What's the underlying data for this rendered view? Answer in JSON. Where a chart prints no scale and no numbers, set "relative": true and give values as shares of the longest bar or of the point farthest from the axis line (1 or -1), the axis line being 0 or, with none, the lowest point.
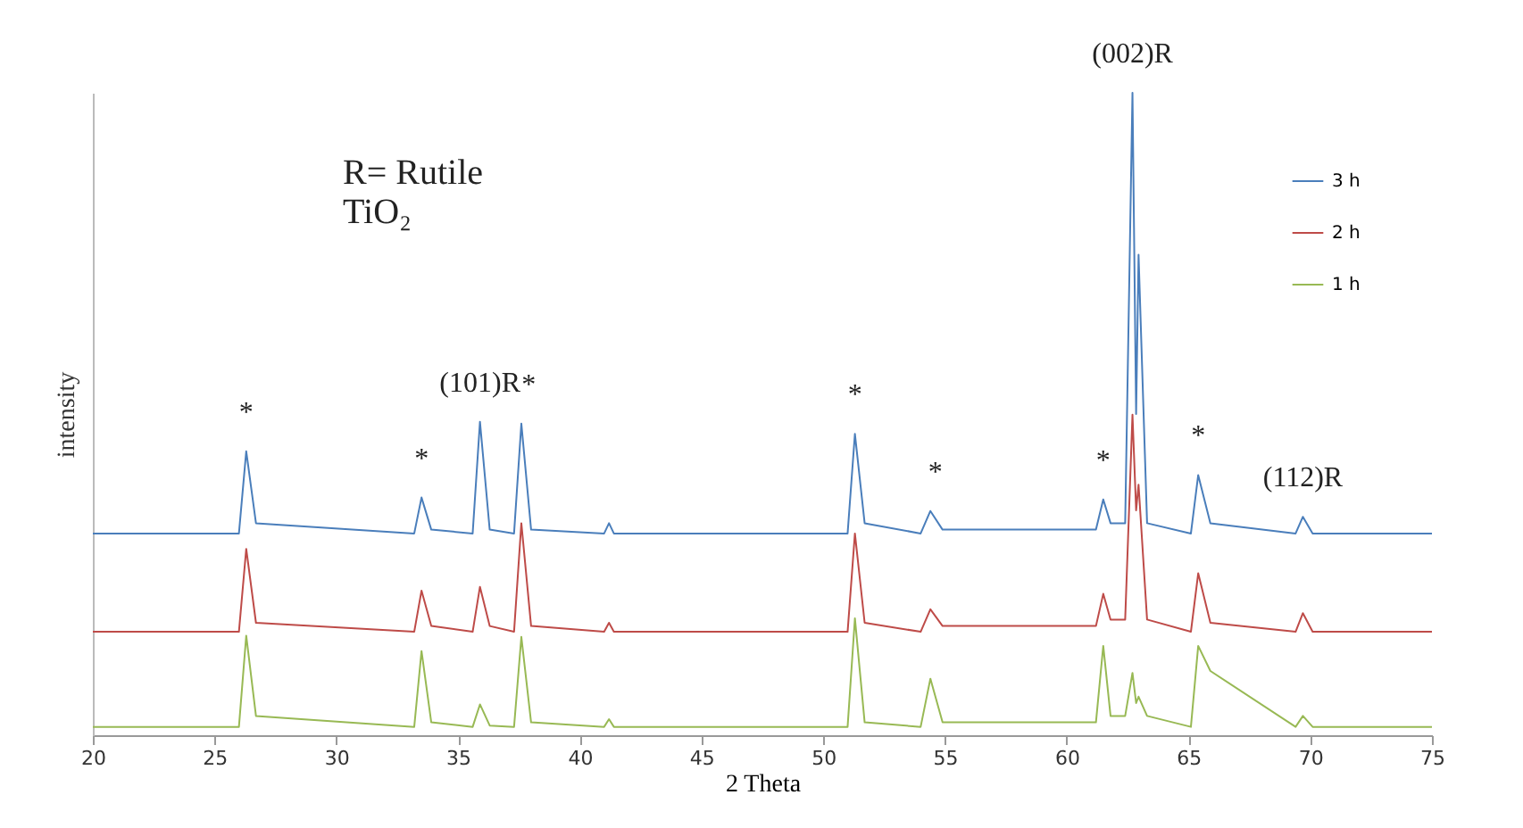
{
  "chart_data": {
    "type": "line",
    "relative": true,
    "xlabel": "2 Theta",
    "ylabel": "intensity",
    "xlim": [
      20,
      75
    ],
    "xticks": [
      20,
      25,
      30,
      35,
      40,
      45,
      50,
      55,
      60,
      65,
      70,
      75
    ],
    "legend": "top right",
    "grid": false,
    "annotations": [
      "R= Rutile",
      "TiO₂",
      {
        "text": "*",
        "x": 26.3,
        "y": 0.442
      },
      {
        "text": "*",
        "x": 33.5,
        "y": 0.37
      },
      {
        "text": "(101)R",
        "x": 35.9,
        "y": 0.488
      },
      {
        "text": "*",
        "x": 37.9,
        "y": 0.485
      },
      {
        "text": "*",
        "x": 51.3,
        "y": 0.469
      },
      {
        "text": "*",
        "x": 54.6,
        "y": 0.349
      },
      {
        "text": "*",
        "x": 61.5,
        "y": 0.367
      },
      {
        "text": "(002)R",
        "x": 62.7,
        "y": 1
      },
      {
        "text": "*",
        "x": 65.4,
        "y": 0.405
      },
      {
        "text": "(112)R",
        "x": 69.7,
        "y": 0.34
      }
    ],
    "series": [
      {
        "name": "3 h",
        "color": "#4a7ebb",
        "x": [
          20,
          26.0,
          26.3,
          26.7,
          33.2,
          33.5,
          33.9,
          35.6,
          35.9,
          36.3,
          37.3,
          37.6,
          38.0,
          41.0,
          41.2,
          41.4,
          51.0,
          51.3,
          51.7,
          54.0,
          54.4,
          54.9,
          61.2,
          61.5,
          61.8,
          62.4,
          62.7,
          62.85,
          62.95,
          63.3,
          65.1,
          65.4,
          65.9,
          69.4,
          69.7,
          70.1,
          75
        ],
        "values": [
          0.314,
          0.314,
          0.442,
          0.33,
          0.314,
          0.37,
          0.32,
          0.314,
          0.488,
          0.32,
          0.314,
          0.485,
          0.32,
          0.314,
          0.33,
          0.314,
          0.314,
          0.469,
          0.33,
          0.314,
          0.349,
          0.32,
          0.32,
          0.367,
          0.33,
          0.33,
          1,
          0.5,
          0.748,
          0.33,
          0.314,
          0.405,
          0.33,
          0.314,
          0.34,
          0.314,
          0.314
        ]
      },
      {
        "name": "2 h",
        "color": "#be4b48",
        "x": [
          20,
          26.0,
          26.3,
          26.7,
          33.2,
          33.5,
          33.9,
          35.6,
          35.9,
          36.3,
          37.3,
          37.6,
          38.0,
          41.0,
          41.2,
          41.4,
          51.0,
          51.3,
          51.7,
          54.0,
          54.4,
          54.9,
          61.2,
          61.5,
          61.8,
          62.4,
          62.7,
          62.85,
          62.95,
          63.3,
          65.1,
          65.4,
          65.9,
          69.4,
          69.7,
          70.1,
          75
        ],
        "values": [
          0.161,
          0.161,
          0.29,
          0.175,
          0.161,
          0.225,
          0.17,
          0.161,
          0.231,
          0.17,
          0.161,
          0.33,
          0.17,
          0.161,
          0.175,
          0.161,
          0.161,
          0.314,
          0.175,
          0.161,
          0.196,
          0.17,
          0.17,
          0.22,
          0.18,
          0.18,
          0.499,
          0.35,
          0.39,
          0.18,
          0.161,
          0.252,
          0.175,
          0.161,
          0.19,
          0.161,
          0.161
        ]
      },
      {
        "name": "1 h",
        "color": "#98b954",
        "x": [
          20,
          26.0,
          26.3,
          26.7,
          33.2,
          33.5,
          33.9,
          35.6,
          35.9,
          36.3,
          37.3,
          37.6,
          38.0,
          41.0,
          41.2,
          41.4,
          51.0,
          51.3,
          51.7,
          54.0,
          54.4,
          54.9,
          61.2,
          61.5,
          61.8,
          62.4,
          62.7,
          62.85,
          62.95,
          63.3,
          65.1,
          65.4,
          65.9,
          69.4,
          69.7,
          70.1,
          75
        ],
        "values": [
          0.013,
          0.013,
          0.155,
          0.03,
          0.013,
          0.131,
          0.02,
          0.013,
          0.048,
          0.015,
          0.013,
          0.153,
          0.02,
          0.013,
          0.025,
          0.013,
          0.013,
          0.182,
          0.02,
          0.013,
          0.088,
          0.02,
          0.02,
          0.139,
          0.03,
          0.03,
          0.097,
          0.05,
          0.06,
          0.03,
          0.013,
          0.139,
          0.1,
          0.013,
          0.03,
          0.013,
          0.013
        ]
      }
    ]
  }
}
